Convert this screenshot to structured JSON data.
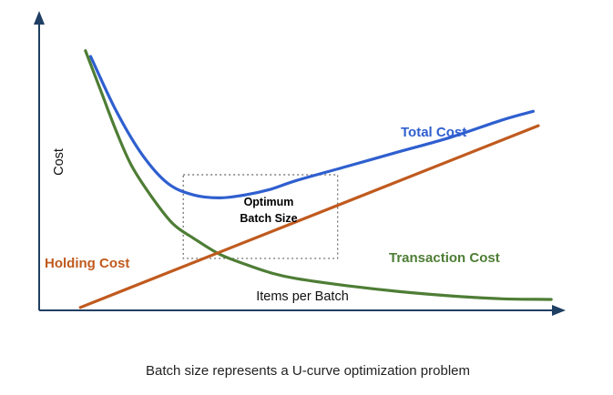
{
  "chart_data": {
    "type": "line",
    "title": "",
    "caption": "Batch size represents a U-curve optimization problem",
    "xlabel": "Items per Batch",
    "ylabel": "Cost",
    "xlim": [
      0,
      10
    ],
    "ylim": [
      0,
      10
    ],
    "grid": false,
    "ticks": "none",
    "series": [
      {
        "name": "Total Cost",
        "color": "#2f5fcf",
        "label_color": "#2f5fcf",
        "x": [
          1.0,
          1.5,
          2.0,
          2.5,
          3.0,
          3.5,
          4.0,
          4.5,
          5.0,
          6.0,
          7.0,
          8.0,
          9.0,
          9.6
        ],
        "y": [
          8.8,
          6.9,
          5.4,
          4.4,
          4.0,
          3.9,
          4.0,
          4.2,
          4.5,
          5.0,
          5.5,
          6.0,
          6.6,
          6.9
        ]
      },
      {
        "name": "Transaction Cost",
        "color": "#4e7d35",
        "label_color": "#4e7d35",
        "x": [
          0.9,
          1.2,
          1.5,
          1.8,
          2.2,
          2.6,
          3.0,
          3.5,
          4.0,
          4.5,
          5.0,
          6.0,
          7.0,
          8.0,
          9.0,
          9.95
        ],
        "y": [
          9.0,
          7.6,
          6.2,
          5.0,
          3.9,
          3.0,
          2.5,
          1.95,
          1.6,
          1.3,
          1.1,
          0.85,
          0.65,
          0.5,
          0.4,
          0.38
        ]
      },
      {
        "name": "Holding Cost",
        "color": "#c05a1e",
        "label_color": "#c05a1e",
        "x": [
          0.8,
          9.7
        ],
        "y": [
          0.1,
          6.4
        ]
      }
    ],
    "annotations": [
      {
        "text": "Optimum",
        "x": 3.7,
        "y": 3.6
      },
      {
        "text": "Batch Size",
        "x": 3.7,
        "y": 3.0
      }
    ],
    "optimum_box": {
      "x0": 2.8,
      "x1": 5.8,
      "y0": 1.8,
      "y1": 4.7
    }
  }
}
